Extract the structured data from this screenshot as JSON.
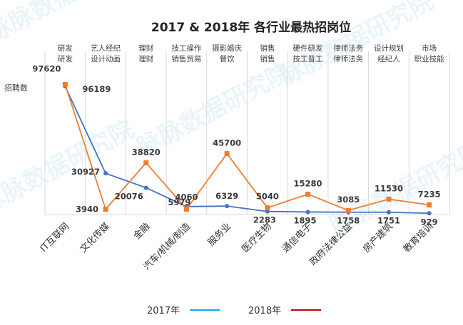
{
  "chart_data": {
    "type": "line",
    "title": "2017 & 2018年 各行业最热招岗位",
    "ylabel": "招聘数",
    "xlabel": "",
    "ylim": [
      0,
      100000
    ],
    "grid": "vertical",
    "legend_position": "bottom",
    "categories": [
      "IT互联网",
      "文化传媒",
      "金融",
      "汽车/机械/制造",
      "服务业",
      "医疗生物",
      "通信电子",
      "政府法律公益",
      "房产建筑",
      "教育培训"
    ],
    "top_labels": [
      [
        "研发",
        "研发"
      ],
      [
        "艺人经纪",
        "设计动画"
      ],
      [
        "理财",
        "理财"
      ],
      [
        "技工操作",
        "销售贸易"
      ],
      [
        "摄影婚庆",
        "餐饮"
      ],
      [
        "销售",
        "销售"
      ],
      [
        "硬件研发",
        "技工普工"
      ],
      [
        "律师法务",
        "律师法务"
      ],
      [
        "设计规划",
        "经纪人"
      ],
      [
        "市场",
        "职业技能"
      ]
    ],
    "series": [
      {
        "name": "2017年",
        "color": "#4472c4",
        "values": [
          96189,
          30927,
          20076,
          5979,
          6329,
          2283,
          1895,
          1758,
          1751,
          929
        ]
      },
      {
        "name": "2018年",
        "color": "#ed7d31",
        "values": [
          97620,
          3940,
          38820,
          4060,
          45700,
          5040,
          15280,
          3085,
          11530,
          7235
        ]
      }
    ],
    "legend": [
      {
        "label": "2017年",
        "color": "#00b0f0"
      },
      {
        "label": "2018年",
        "color": "#c00000"
      }
    ],
    "watermark": "脉脉数据研究院"
  }
}
